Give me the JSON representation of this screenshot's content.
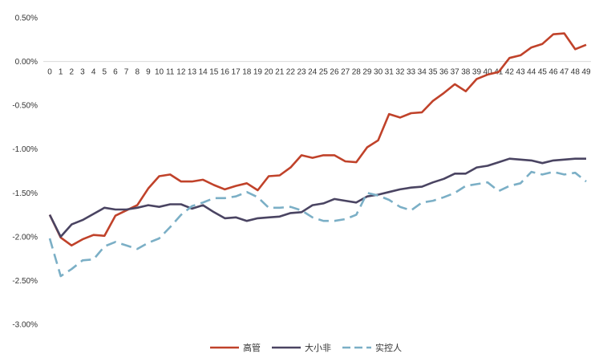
{
  "chart_data": {
    "type": "line",
    "title": "",
    "xlabel": "",
    "ylabel": "",
    "ylim": [
      -3.0,
      0.5
    ],
    "grid": false,
    "legend_position": "bottom",
    "y_ticks": [
      "0.50%",
      "0.00%",
      "-0.50%",
      "-1.00%",
      "-1.50%",
      "-2.00%",
      "-2.50%",
      "-3.00%"
    ],
    "y_tick_values": [
      0.5,
      0.0,
      -0.5,
      -1.0,
      -1.5,
      -2.0,
      -2.5,
      -3.0
    ],
    "x": [
      0,
      1,
      2,
      3,
      4,
      5,
      6,
      7,
      8,
      9,
      10,
      11,
      12,
      13,
      14,
      15,
      16,
      17,
      18,
      19,
      20,
      21,
      22,
      23,
      24,
      25,
      26,
      27,
      28,
      29,
      30,
      31,
      32,
      33,
      34,
      35,
      36,
      37,
      38,
      39,
      40,
      41,
      42,
      43,
      44,
      45,
      46,
      47,
      48,
      49
    ],
    "series": [
      {
        "name": "高管",
        "color": "#c0422a",
        "style": "solid",
        "values": [
          -1.75,
          -2.01,
          -2.1,
          -2.03,
          -1.98,
          -1.99,
          -1.76,
          -1.7,
          -1.64,
          -1.45,
          -1.31,
          -1.29,
          -1.37,
          -1.37,
          -1.35,
          -1.41,
          -1.46,
          -1.42,
          -1.39,
          -1.47,
          -1.31,
          -1.3,
          -1.21,
          -1.07,
          -1.1,
          -1.07,
          -1.07,
          -1.14,
          -1.15,
          -0.98,
          -0.9,
          -0.6,
          -0.64,
          -0.59,
          -0.58,
          -0.45,
          -0.36,
          -0.26,
          -0.34,
          -0.2,
          -0.15,
          -0.12,
          0.04,
          0.07,
          0.16,
          0.2,
          0.31,
          0.32,
          0.14,
          0.19
        ]
      },
      {
        "name": "大小非",
        "color": "#4a4462",
        "style": "solid",
        "values": [
          -1.75,
          -2.0,
          -1.86,
          -1.81,
          -1.74,
          -1.67,
          -1.69,
          -1.69,
          -1.67,
          -1.64,
          -1.66,
          -1.63,
          -1.63,
          -1.68,
          -1.64,
          -1.72,
          -1.79,
          -1.78,
          -1.82,
          -1.79,
          -1.78,
          -1.77,
          -1.73,
          -1.72,
          -1.64,
          -1.62,
          -1.57,
          -1.59,
          -1.61,
          -1.54,
          -1.52,
          -1.49,
          -1.46,
          -1.44,
          -1.43,
          -1.38,
          -1.34,
          -1.28,
          -1.28,
          -1.21,
          -1.19,
          -1.15,
          -1.11,
          -1.12,
          -1.13,
          -1.16,
          -1.13,
          -1.12,
          -1.11,
          -1.11
        ]
      },
      {
        "name": "实控人",
        "color": "#7bafc6",
        "style": "dashed",
        "values": [
          -2.02,
          -2.45,
          -2.37,
          -2.27,
          -2.26,
          -2.11,
          -2.06,
          -2.1,
          -2.14,
          -2.07,
          -2.02,
          -1.89,
          -1.75,
          -1.65,
          -1.61,
          -1.56,
          -1.56,
          -1.54,
          -1.49,
          -1.55,
          -1.67,
          -1.67,
          -1.66,
          -1.7,
          -1.78,
          -1.82,
          -1.82,
          -1.8,
          -1.75,
          -1.5,
          -1.53,
          -1.58,
          -1.66,
          -1.7,
          -1.61,
          -1.59,
          -1.55,
          -1.5,
          -1.42,
          -1.4,
          -1.38,
          -1.48,
          -1.42,
          -1.39,
          -1.26,
          -1.29,
          -1.26,
          -1.29,
          -1.27,
          -1.37
        ]
      }
    ]
  }
}
